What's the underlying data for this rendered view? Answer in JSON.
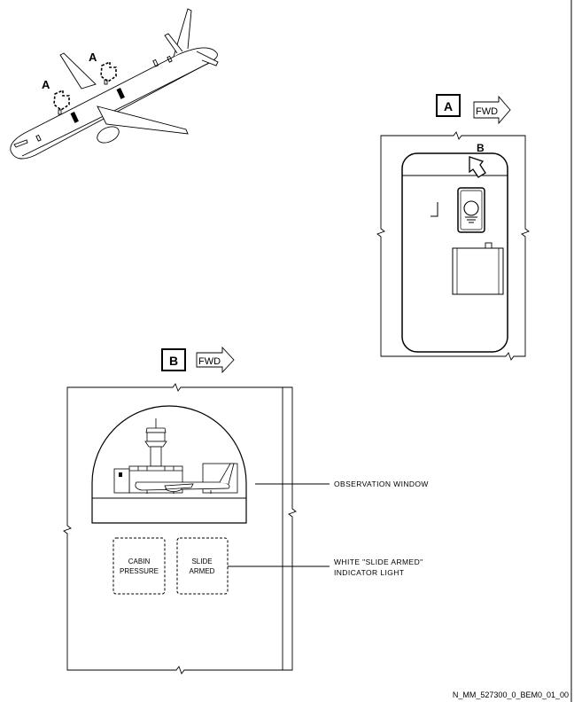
{
  "aircraft_view": {
    "zone_labels": [
      "A",
      "A"
    ]
  },
  "detail_a": {
    "ref_letter": "A",
    "fwd_label": "FWD",
    "view_arrow_label": "B"
  },
  "detail_b": {
    "ref_letter": "B",
    "fwd_label": "FWD",
    "panel_cabin_pressure": [
      "CABIN",
      "PRESSURE"
    ],
    "panel_slide_armed": [
      "SLIDE",
      "ARMED"
    ],
    "callout_window": "OBSERVATION WINDOW",
    "callout_light_line1": "WHITE \"SLIDE ARMED\"",
    "callout_light_line2": "INDICATOR LIGHT"
  },
  "figure_id": "N_MM_527300_0_BEM0_01_00"
}
